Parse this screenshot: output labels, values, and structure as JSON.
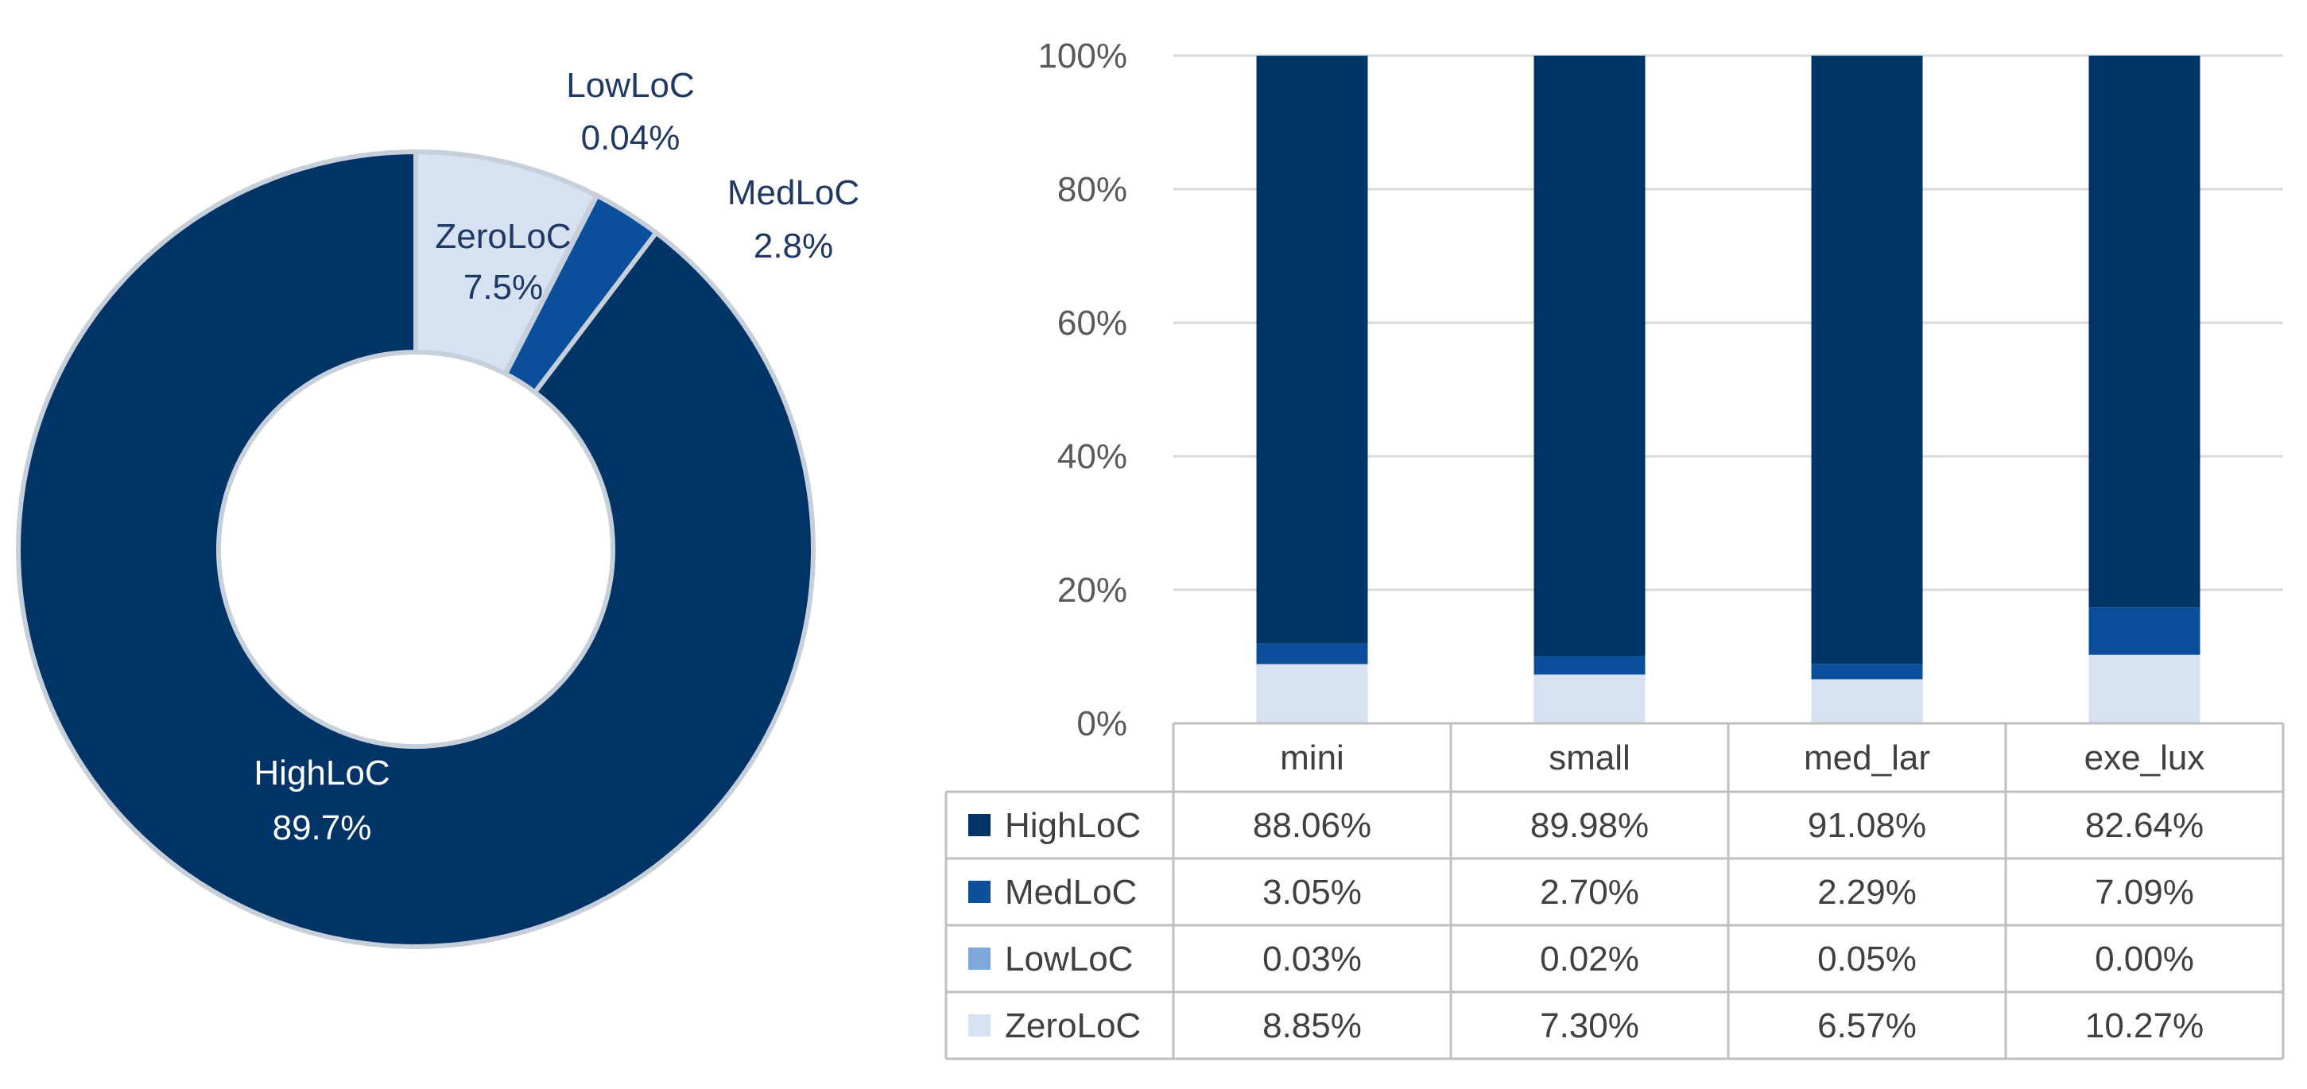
{
  "colors": {
    "HighLoC": "#003366",
    "MedLoC": "#0B4F9C",
    "LowLoC": "#7FA8DA",
    "ZeroLoC": "#D6E2F2",
    "grid": "#D9D9D9",
    "table_border": "#BFBFBF",
    "text_dark": "#1F3864",
    "text_light": "#FFFFFF"
  },
  "chart_data": [
    {
      "type": "pie",
      "variant": "donut",
      "slices": [
        {
          "label": "ZeroLoC",
          "value": 7.5,
          "display": "7.5%",
          "label_color": "#1F3864"
        },
        {
          "label": "LowLoC",
          "value": 0.04,
          "display": "0.04%",
          "label_color": "#1F3864"
        },
        {
          "label": "MedLoC",
          "value": 2.8,
          "display": "2.8%",
          "label_color": "#1F3864"
        },
        {
          "label": "HighLoC",
          "value": 89.7,
          "display": "89.7%",
          "label_color": "#FFFFFF"
        }
      ]
    },
    {
      "type": "bar",
      "stacked": true,
      "percent": true,
      "categories": [
        "mini",
        "small",
        "med_lar",
        "exe_lux"
      ],
      "ylim": [
        0,
        100
      ],
      "yticks": [
        "0%",
        "20%",
        "40%",
        "60%",
        "80%",
        "100%"
      ],
      "grid": true,
      "series": [
        {
          "name": "ZeroLoC",
          "values": [
            8.85,
            7.3,
            6.57,
            10.27
          ],
          "labels": [
            "8.85%",
            "7.30%",
            "6.57%",
            "10.27%"
          ]
        },
        {
          "name": "LowLoC",
          "values": [
            0.03,
            0.02,
            0.05,
            0.0
          ],
          "labels": [
            "0.03%",
            "0.02%",
            "0.05%",
            "0.00%"
          ]
        },
        {
          "name": "MedLoC",
          "values": [
            3.05,
            2.7,
            2.29,
            7.09
          ],
          "labels": [
            "3.05%",
            "2.70%",
            "2.29%",
            "7.09%"
          ]
        },
        {
          "name": "HighLoC",
          "values": [
            88.06,
            89.98,
            91.08,
            82.64
          ],
          "labels": [
            "88.06%",
            "89.98%",
            "91.08%",
            "82.64%"
          ]
        }
      ],
      "table_row_order": [
        "HighLoC",
        "MedLoC",
        "LowLoC",
        "ZeroLoC"
      ]
    }
  ]
}
